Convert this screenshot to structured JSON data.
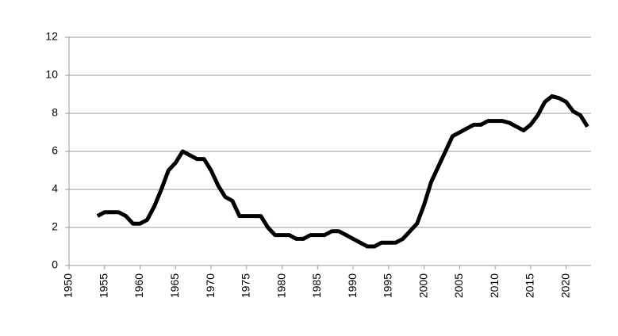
{
  "chart_data": {
    "type": "line",
    "x": [
      1954,
      1955,
      1956,
      1957,
      1958,
      1959,
      1960,
      1961,
      1962,
      1963,
      1964,
      1965,
      1966,
      1967,
      1968,
      1969,
      1970,
      1971,
      1972,
      1973,
      1974,
      1975,
      1976,
      1977,
      1978,
      1979,
      1980,
      1981,
      1982,
      1983,
      1984,
      1985,
      1986,
      1987,
      1988,
      1989,
      1990,
      1991,
      1992,
      1993,
      1994,
      1995,
      1996,
      1997,
      1998,
      1999,
      2000,
      2001,
      2002,
      2003,
      2004,
      2005,
      2006,
      2007,
      2008,
      2009,
      2010,
      2011,
      2012,
      2013,
      2014,
      2015,
      2016,
      2017,
      2018,
      2019,
      2020,
      2021,
      2022,
      2023
    ],
    "values": [
      2.6,
      2.8,
      2.8,
      2.8,
      2.6,
      2.2,
      2.2,
      2.4,
      3.1,
      4.0,
      5.0,
      5.4,
      6.0,
      5.8,
      5.6,
      5.6,
      5.0,
      4.2,
      3.6,
      3.4,
      2.6,
      2.6,
      2.6,
      2.6,
      2.0,
      1.6,
      1.6,
      1.6,
      1.4,
      1.4,
      1.6,
      1.6,
      1.6,
      1.8,
      1.8,
      1.6,
      1.4,
      1.2,
      1.0,
      1.0,
      1.2,
      1.2,
      1.2,
      1.4,
      1.8,
      2.2,
      3.2,
      4.4,
      5.2,
      6.0,
      6.8,
      7.0,
      7.2,
      7.4,
      7.4,
      7.6,
      7.6,
      7.6,
      7.5,
      7.3,
      7.1,
      7.4,
      7.9,
      8.6,
      8.9,
      8.8,
      8.6,
      8.1,
      7.9,
      7.3
    ],
    "color": "#000000",
    "xlim": [
      1950,
      2023.5
    ],
    "xticks": [
      1950,
      1955,
      1960,
      1965,
      1970,
      1975,
      1980,
      1985,
      1990,
      1995,
      2000,
      2005,
      2010,
      2015,
      2020
    ],
    "ylim": [
      0,
      12
    ],
    "yticks": [
      0,
      2,
      4,
      6,
      8,
      10,
      12
    ],
    "grid": true
  }
}
